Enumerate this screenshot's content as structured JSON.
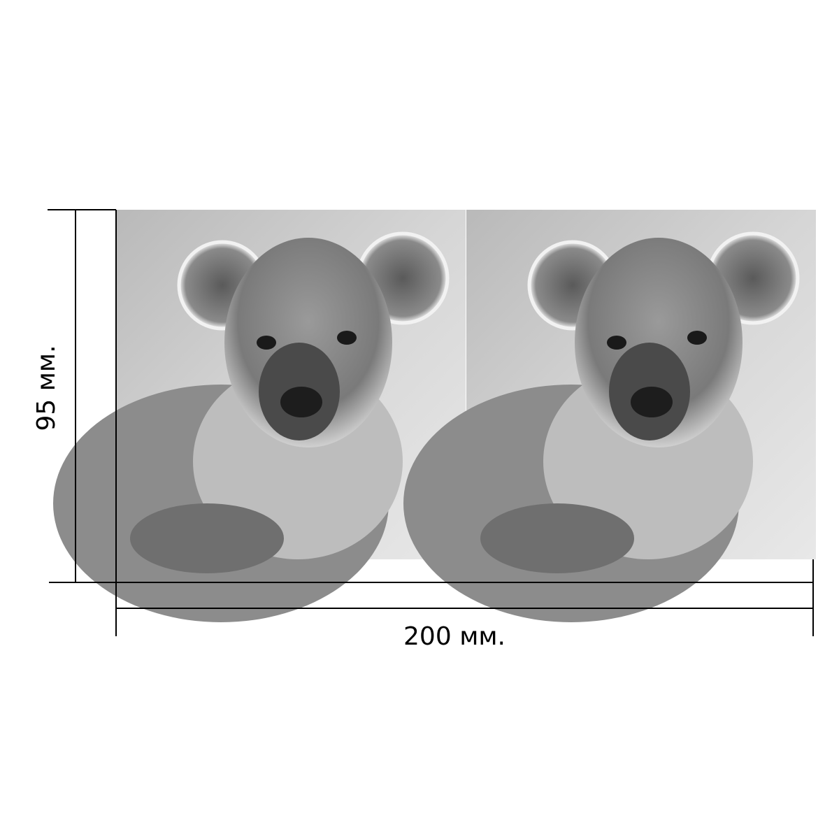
{
  "dimensions": {
    "height": {
      "label": "95 мм."
    },
    "width": {
      "label": "200 мм."
    }
  }
}
